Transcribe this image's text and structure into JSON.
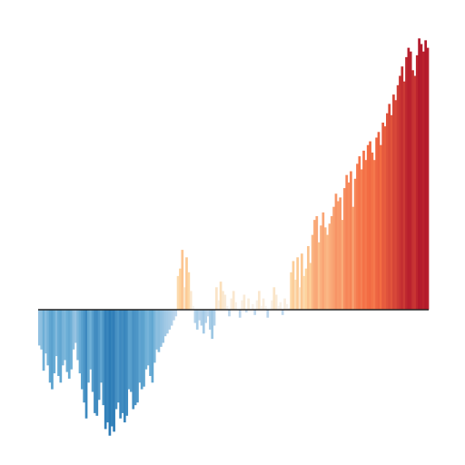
{
  "chart_data": {
    "type": "bar",
    "title": "",
    "xlabel": "",
    "ylabel": "",
    "grid": false,
    "legend": "none",
    "ylim": [
      -1.0,
      1.5
    ],
    "colormap": {
      "cold_deep": "#2c7bb6",
      "cold_mid": "#6baed6",
      "cold_light": "#c6dbef",
      "neutral": "#f7f7f7",
      "warm_light": "#fdd49e",
      "warm_mid": "#f46d43",
      "warm_deep": "#b2182b"
    },
    "series": [
      {
        "values": [
          -0.27,
          -0.3,
          -0.46,
          -0.33,
          -0.42,
          -0.55,
          -0.6,
          -0.48,
          -0.35,
          -0.5,
          -0.55,
          -0.42,
          -0.38,
          -0.47,
          -0.52,
          -0.45,
          -0.3,
          -0.25,
          -0.38,
          -0.48,
          -0.6,
          -0.7,
          -0.82,
          -0.55,
          -0.45,
          -0.62,
          -0.78,
          -0.8,
          -0.68,
          -0.55,
          -0.72,
          -0.9,
          -0.85,
          -0.95,
          -0.88,
          -0.92,
          -0.75,
          -0.7,
          -0.82,
          -0.78,
          -0.85,
          -0.8,
          -0.6,
          -0.62,
          -0.75,
          -0.72,
          -0.7,
          -0.55,
          -0.6,
          -0.58,
          -0.45,
          -0.42,
          -0.5,
          -0.55,
          -0.4,
          -0.3,
          -0.32,
          -0.28,
          -0.25,
          -0.2,
          -0.18,
          -0.15,
          -0.12,
          -0.08,
          -0.05,
          0.18,
          0.22,
          0.32,
          0.12,
          0.28,
          0.2,
          0.1,
          0.02,
          -0.1,
          -0.15,
          -0.08,
          -0.12,
          -0.18,
          -0.1,
          -0.05,
          -0.15,
          -0.22,
          -0.12,
          0.12,
          0.05,
          0.15,
          0.1,
          0.08,
          0.02,
          -0.05,
          0.06,
          0.1,
          0.04,
          0.0,
          -0.06,
          0.05,
          0.08,
          -0.02,
          0.06,
          0.0,
          0.03,
          -0.04,
          0.05,
          0.1,
          0.02,
          0.06,
          0.02,
          -0.06,
          0.0,
          0.05,
          0.12,
          0.08,
          0.02,
          0.04,
          -0.04,
          0.06,
          0.03,
          0.01,
          0.2,
          0.26,
          0.16,
          0.28,
          0.12,
          0.3,
          0.18,
          0.22,
          0.34,
          0.25,
          0.4,
          0.48,
          0.5,
          0.36,
          0.45,
          0.52,
          0.44,
          0.4,
          0.46,
          0.5,
          0.55,
          0.62,
          0.58,
          0.6,
          0.48,
          0.65,
          0.72,
          0.68,
          0.74,
          0.55,
          0.7,
          0.78,
          0.82,
          0.75,
          0.85,
          0.8,
          0.88,
          0.9,
          0.84,
          0.8,
          0.92,
          0.95,
          0.88,
          1.0,
          0.98,
          1.05,
          1.1,
          1.04,
          1.15,
          1.12,
          1.2,
          1.25,
          1.3,
          1.22,
          1.35,
          1.4,
          1.38,
          1.28,
          1.25,
          1.36,
          1.45,
          1.42,
          1.38,
          1.44,
          1.4
        ]
      }
    ]
  }
}
